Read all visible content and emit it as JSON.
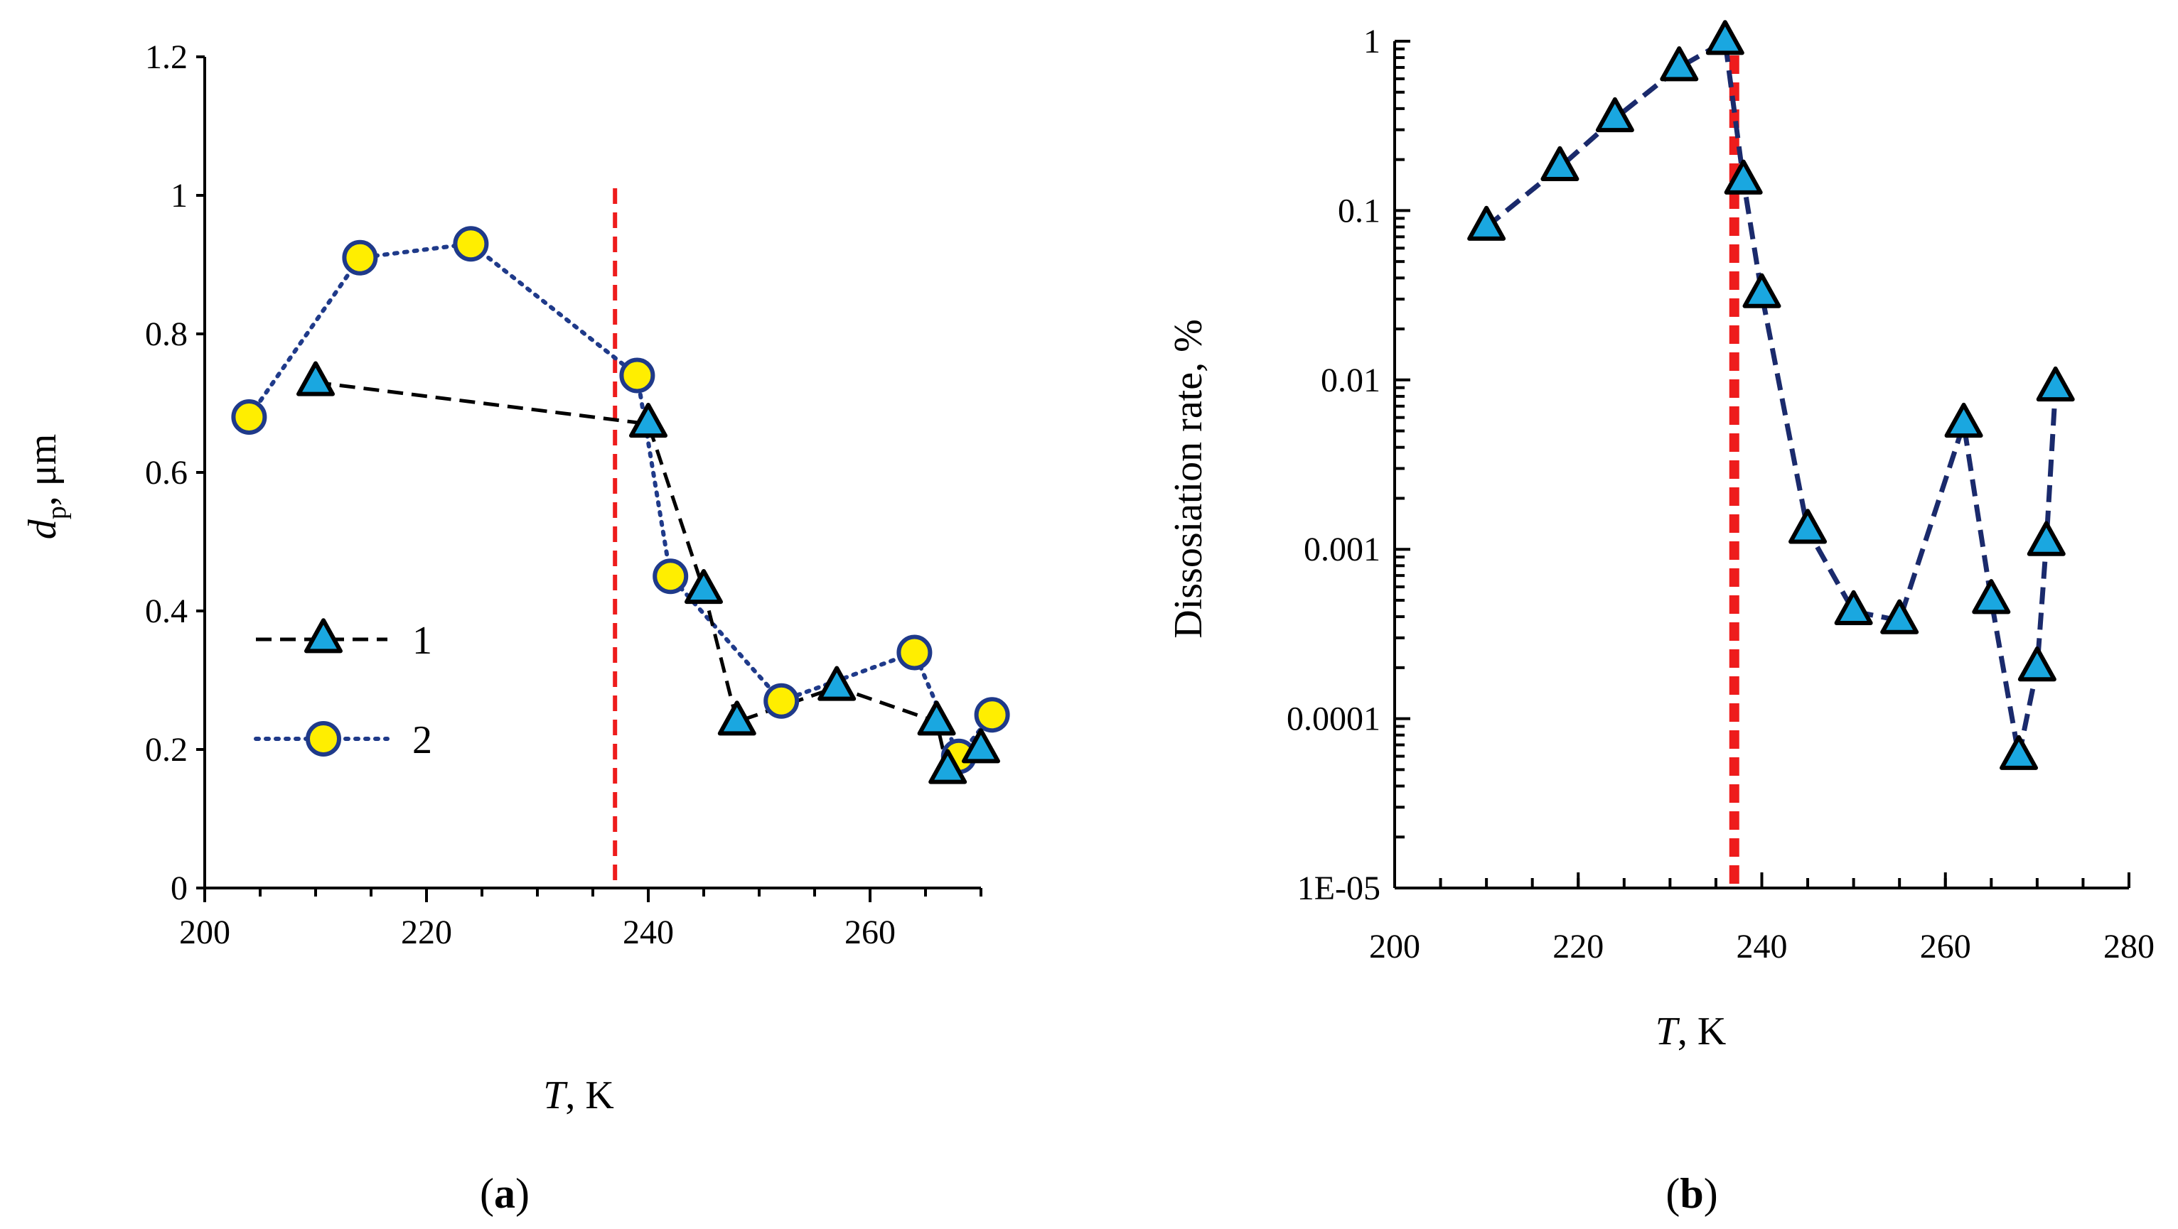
{
  "chart_data": [
    {
      "panel_label": "a",
      "type": "line",
      "xlabel_italic": "T",
      "xlabel_rest": ", K",
      "ylabel_italic": "d",
      "ylabel_sub": "p",
      "ylabel_rest": ", μm",
      "xlim": [
        200,
        270
      ],
      "ylim": [
        0,
        1.2
      ],
      "xticks": [
        200,
        220,
        240,
        260
      ],
      "xtick_labels": [
        "200",
        "220",
        "240",
        "260"
      ],
      "yticks": [
        0,
        0.2,
        0.4,
        0.6,
        0.8,
        1,
        1.2
      ],
      "ytick_labels": [
        "0",
        "0.2",
        "0.4",
        "0.6",
        "0.8",
        "1",
        "1.2"
      ],
      "vline_x": 237,
      "vline_color": "#ee1c1c",
      "legend_position": "center-left",
      "series": [
        {
          "name": "1",
          "marker": "triangle",
          "marker_fill": "#1aa7e0",
          "line_style": "dashed",
          "line_color": "#000000",
          "x": [
            210,
            240,
            245,
            248,
            257,
            266,
            267,
            270
          ],
          "y": [
            0.73,
            0.67,
            0.43,
            0.24,
            0.29,
            0.24,
            0.17,
            0.2
          ]
        },
        {
          "name": "2",
          "marker": "circle",
          "marker_fill": "#ffee00",
          "line_style": "dotted",
          "line_color": "#1f3a8a",
          "x": [
            204,
            214,
            224,
            239,
            242,
            252,
            264,
            268,
            271
          ],
          "y": [
            0.68,
            0.91,
            0.93,
            0.74,
            0.45,
            0.27,
            0.34,
            0.19,
            0.25
          ]
        }
      ]
    },
    {
      "panel_label": "b",
      "type": "line",
      "yscale": "log",
      "xlabel_italic": "T",
      "xlabel_rest": ", K",
      "ylabel": "Dissosiation rate, %",
      "xlim": [
        200,
        280
      ],
      "ylim": [
        1e-05,
        1
      ],
      "xticks": [
        200,
        220,
        240,
        260,
        280
      ],
      "xtick_labels": [
        "200",
        "220",
        "240",
        "260",
        "280"
      ],
      "yticks": [
        1e-05,
        0.0001,
        0.001,
        0.01,
        0.1,
        1
      ],
      "ytick_labels": [
        "1E-05",
        "0.0001",
        "0.001",
        "0.01",
        "0.1",
        "1"
      ],
      "vline_x": 237,
      "vline_color": "#ee1c1c",
      "series": [
        {
          "name": "dissociation rate",
          "marker": "triangle",
          "marker_fill": "#1aa7e0",
          "line_style": "dashed",
          "line_color": "#1a2a6c",
          "x": [
            210,
            218,
            224,
            231,
            236,
            238,
            240,
            245,
            250,
            255,
            262,
            265,
            268,
            270,
            271,
            272
          ],
          "y": [
            0.08,
            0.18,
            0.35,
            0.7,
            1.0,
            0.15,
            0.032,
            0.0013,
            0.00043,
            0.00038,
            0.0055,
            0.0005,
            6e-05,
            0.0002,
            0.0011,
            0.009
          ]
        }
      ]
    }
  ]
}
